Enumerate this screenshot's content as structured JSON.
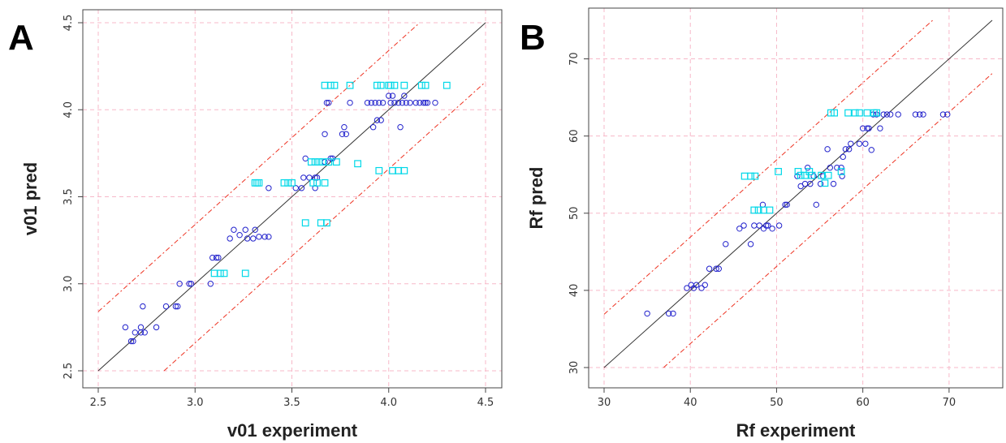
{
  "panels": {
    "a_label": "A",
    "b_label": "B"
  },
  "chart_data": [
    {
      "type": "scatter",
      "xlabel": "v01 experiment",
      "ylabel": "v01 pred",
      "xlim": [
        2.5,
        4.5
      ],
      "ylim": [
        2.5,
        4.5
      ],
      "xticks": [
        "2.5",
        "3.0",
        "3.5",
        "4.0",
        "4.5"
      ],
      "yticks": [
        "2.5",
        "3.0",
        "3.5",
        "4.0",
        "4.5"
      ],
      "grid": true,
      "colors": {
        "circle": "#2222cc",
        "square": "#00d8e8",
        "fit": "#333333",
        "band": "#ee3322",
        "grid": "#f7b8c8"
      },
      "lines": [
        {
          "kind": "identity",
          "points": [
            [
              2.5,
              2.5
            ],
            [
              4.5,
              4.5
            ]
          ]
        },
        {
          "kind": "upper-band",
          "points": [
            [
              2.5,
              2.84
            ],
            [
              4.15,
              4.49
            ]
          ]
        },
        {
          "kind": "lower-band",
          "points": [
            [
              2.84,
              2.5
            ],
            [
              4.5,
              4.16
            ]
          ]
        }
      ],
      "series": [
        {
          "marker": "circle",
          "points": [
            [
              2.64,
              2.75
            ],
            [
              2.67,
              2.67
            ],
            [
              2.68,
              2.67
            ],
            [
              2.69,
              2.72
            ],
            [
              2.72,
              2.75
            ],
            [
              2.72,
              2.72
            ],
            [
              2.73,
              2.87
            ],
            [
              2.74,
              2.72
            ],
            [
              2.8,
              2.75
            ],
            [
              2.85,
              2.87
            ],
            [
              2.9,
              2.87
            ],
            [
              2.91,
              2.87
            ],
            [
              2.92,
              3.0
            ],
            [
              2.97,
              3.0
            ],
            [
              2.98,
              3.0
            ],
            [
              3.08,
              3.0
            ],
            [
              3.09,
              3.15
            ],
            [
              3.11,
              3.15
            ],
            [
              3.12,
              3.15
            ],
            [
              3.18,
              3.26
            ],
            [
              3.2,
              3.31
            ],
            [
              3.23,
              3.28
            ],
            [
              3.26,
              3.31
            ],
            [
              3.27,
              3.26
            ],
            [
              3.3,
              3.26
            ],
            [
              3.31,
              3.31
            ],
            [
              3.33,
              3.27
            ],
            [
              3.36,
              3.27
            ],
            [
              3.38,
              3.27
            ],
            [
              3.38,
              3.55
            ],
            [
              3.52,
              3.55
            ],
            [
              3.55,
              3.55
            ],
            [
              3.56,
              3.61
            ],
            [
              3.57,
              3.72
            ],
            [
              3.59,
              3.61
            ],
            [
              3.62,
              3.61
            ],
            [
              3.62,
              3.55
            ],
            [
              3.63,
              3.61
            ],
            [
              3.67,
              3.86
            ],
            [
              3.67,
              3.7
            ],
            [
              3.68,
              4.04
            ],
            [
              3.69,
              4.04
            ],
            [
              3.7,
              3.72
            ],
            [
              3.71,
              3.72
            ],
            [
              3.76,
              3.86
            ],
            [
              3.77,
              3.9
            ],
            [
              3.78,
              3.86
            ],
            [
              3.8,
              4.04
            ],
            [
              3.89,
              4.04
            ],
            [
              3.91,
              4.04
            ],
            [
              3.92,
              3.9
            ],
            [
              3.93,
              4.04
            ],
            [
              3.94,
              3.94
            ],
            [
              3.95,
              4.04
            ],
            [
              3.96,
              3.94
            ],
            [
              3.97,
              4.04
            ],
            [
              4.0,
              4.08
            ],
            [
              4.01,
              4.04
            ],
            [
              4.02,
              4.08
            ],
            [
              4.03,
              4.04
            ],
            [
              4.05,
              4.04
            ],
            [
              4.06,
              3.9
            ],
            [
              4.07,
              4.04
            ],
            [
              4.08,
              4.08
            ],
            [
              4.09,
              4.04
            ],
            [
              4.11,
              4.04
            ],
            [
              4.14,
              4.04
            ],
            [
              4.16,
              4.04
            ],
            [
              4.18,
              4.04
            ],
            [
              4.19,
              4.04
            ],
            [
              4.2,
              4.04
            ],
            [
              4.24,
              4.04
            ]
          ]
        },
        {
          "marker": "square",
          "points": [
            [
              3.1,
              3.06
            ],
            [
              3.13,
              3.06
            ],
            [
              3.15,
              3.06
            ],
            [
              3.26,
              3.06
            ],
            [
              3.31,
              3.58
            ],
            [
              3.32,
              3.58
            ],
            [
              3.33,
              3.58
            ],
            [
              3.46,
              3.58
            ],
            [
              3.48,
              3.58
            ],
            [
              3.5,
              3.58
            ],
            [
              3.57,
              3.35
            ],
            [
              3.6,
              3.7
            ],
            [
              3.61,
              3.58
            ],
            [
              3.62,
              3.7
            ],
            [
              3.63,
              3.58
            ],
            [
              3.64,
              3.7
            ],
            [
              3.65,
              3.35
            ],
            [
              3.66,
              3.7
            ],
            [
              3.67,
              3.58
            ],
            [
              3.67,
              4.14
            ],
            [
              3.68,
              3.35
            ],
            [
              3.69,
              3.7
            ],
            [
              3.7,
              4.14
            ],
            [
              3.72,
              4.14
            ],
            [
              3.73,
              3.7
            ],
            [
              3.8,
              4.14
            ],
            [
              3.84,
              3.69
            ],
            [
              3.94,
              4.14
            ],
            [
              3.95,
              3.65
            ],
            [
              3.96,
              4.14
            ],
            [
              4.0,
              4.14
            ],
            [
              4.01,
              4.14
            ],
            [
              4.02,
              3.65
            ],
            [
              4.03,
              4.14
            ],
            [
              4.05,
              3.65
            ],
            [
              4.08,
              3.65
            ],
            [
              4.08,
              4.14
            ],
            [
              4.17,
              4.14
            ],
            [
              4.19,
              4.14
            ],
            [
              4.3,
              4.14
            ]
          ]
        }
      ]
    },
    {
      "type": "scatter",
      "xlabel": "Rf experiment",
      "ylabel": "Rf pred",
      "xlim": [
        30,
        75
      ],
      "ylim": [
        30,
        75
      ],
      "xticks": [
        "30",
        "40",
        "50",
        "60",
        "70"
      ],
      "yticks": [
        "30",
        "40",
        "50",
        "60",
        "70"
      ],
      "grid": true,
      "colors": {
        "circle": "#2222cc",
        "square": "#00d8e8",
        "fit": "#333333",
        "band": "#ee3322",
        "grid": "#f7b8c8"
      },
      "lines": [
        {
          "kind": "identity",
          "points": [
            [
              30,
              30
            ],
            [
              75,
              75
            ]
          ]
        },
        {
          "kind": "upper-band",
          "points": [
            [
              30,
              36.9
            ],
            [
              68.1,
              75
            ]
          ]
        },
        {
          "kind": "lower-band",
          "points": [
            [
              36.9,
              30
            ],
            [
              75,
              68.1
            ]
          ]
        }
      ],
      "series": [
        {
          "marker": "circle",
          "points": [
            [
              35,
              37
            ],
            [
              37.5,
              37
            ],
            [
              38,
              37
            ],
            [
              39.6,
              40.3
            ],
            [
              40.1,
              40.7
            ],
            [
              40.4,
              40.3
            ],
            [
              40.7,
              40.7
            ],
            [
              41.3,
              40.3
            ],
            [
              41.7,
              40.7
            ],
            [
              42.2,
              42.8
            ],
            [
              43,
              42.8
            ],
            [
              43.3,
              42.8
            ],
            [
              44.1,
              46
            ],
            [
              45.7,
              48
            ],
            [
              46.2,
              48.4
            ],
            [
              47,
              46
            ],
            [
              47.4,
              48.4
            ],
            [
              48,
              48.4
            ],
            [
              48.4,
              51.1
            ],
            [
              48.5,
              48
            ],
            [
              48.8,
              48.4
            ],
            [
              49,
              48.4
            ],
            [
              49.5,
              48
            ],
            [
              50.3,
              48.4
            ],
            [
              51,
              51.1
            ],
            [
              51.2,
              51.1
            ],
            [
              52.4,
              54.8
            ],
            [
              52.8,
              53.5
            ],
            [
              53.3,
              53.8
            ],
            [
              53.6,
              55.9
            ],
            [
              53.9,
              53.8
            ],
            [
              54.3,
              54.8
            ],
            [
              54.6,
              51.1
            ],
            [
              55.1,
              53.8
            ],
            [
              55.4,
              54.8
            ],
            [
              55.9,
              58.3
            ],
            [
              56.2,
              55.9
            ],
            [
              56.6,
              53.8
            ],
            [
              57,
              55.9
            ],
            [
              57.5,
              55.9
            ],
            [
              57.6,
              54.8
            ],
            [
              57.7,
              57.3
            ],
            [
              58,
              58.3
            ],
            [
              58.4,
              58.3
            ],
            [
              58.6,
              59
            ],
            [
              59.6,
              59
            ],
            [
              60,
              61
            ],
            [
              60.3,
              59
            ],
            [
              60.5,
              61
            ],
            [
              60.7,
              61
            ],
            [
              61,
              58.2
            ],
            [
              61.2,
              62.8
            ],
            [
              61.6,
              62.8
            ],
            [
              62,
              61
            ],
            [
              62.4,
              62.8
            ],
            [
              62.8,
              62.8
            ],
            [
              63.2,
              62.8
            ],
            [
              64.1,
              62.8
            ],
            [
              66.1,
              62.8
            ],
            [
              66.6,
              62.8
            ],
            [
              67,
              62.8
            ],
            [
              69.3,
              62.8
            ],
            [
              69.8,
              62.8
            ]
          ]
        },
        {
          "marker": "square",
          "points": [
            [
              46.3,
              54.8
            ],
            [
              47,
              54.8
            ],
            [
              47.4,
              50.4
            ],
            [
              47.5,
              54.8
            ],
            [
              47.9,
              50.4
            ],
            [
              48.5,
              50.4
            ],
            [
              49.2,
              50.4
            ],
            [
              50.2,
              55.4
            ],
            [
              52.5,
              55.4
            ],
            [
              52.8,
              54.9
            ],
            [
              53.3,
              54.9
            ],
            [
              53.8,
              55.4
            ],
            [
              54.1,
              54.9
            ],
            [
              55.2,
              54.9
            ],
            [
              55.6,
              53.9
            ],
            [
              56,
              54.9
            ],
            [
              56.3,
              63
            ],
            [
              56.7,
              63
            ],
            [
              57.5,
              55.4
            ],
            [
              58.3,
              63
            ],
            [
              59.1,
              63
            ],
            [
              59.6,
              63
            ],
            [
              60.5,
              63
            ],
            [
              61.3,
              63
            ],
            [
              61.6,
              63
            ]
          ]
        }
      ]
    }
  ]
}
